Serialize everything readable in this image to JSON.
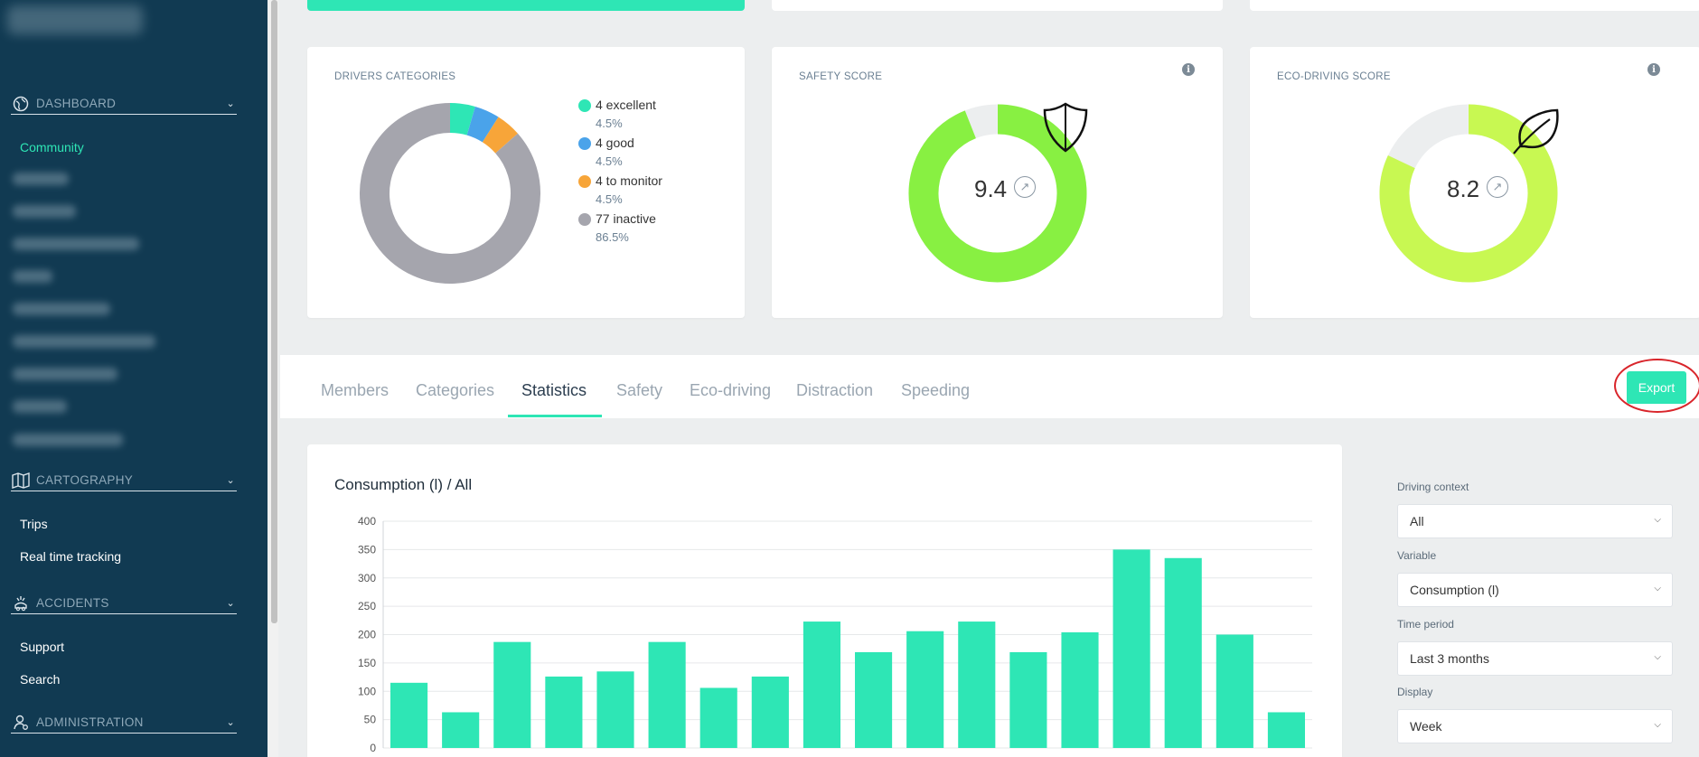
{
  "sidebar": {
    "sections": {
      "dashboard": "DASHBOARD",
      "cartography": "CARTOGRAPHY",
      "accidents": "ACCIDENTS",
      "administration": "ADMINISTRATION"
    },
    "dashboard_items": {
      "community": "Community"
    },
    "cartography_items": {
      "trips": "Trips",
      "realtime": "Real time tracking"
    },
    "accidents_items": {
      "support": "Support",
      "search": "Search"
    }
  },
  "cards": {
    "drivers": {
      "title": "DRIVERS CATEGORIES",
      "legend": [
        {
          "label": "4 excellent",
          "pct": "4.5%",
          "color": "#2ee6b5",
          "value": 4
        },
        {
          "label": "4 good",
          "pct": "4.5%",
          "color": "#4aa3ea",
          "value": 4
        },
        {
          "label": "4 to monitor",
          "pct": "4.5%",
          "color": "#f7a539",
          "value": 4
        },
        {
          "label": "77 inactive",
          "pct": "86.5%",
          "color": "#a5a5ad",
          "value": 77
        }
      ]
    },
    "safety": {
      "title": "SAFETY SCORE",
      "value": "9.4",
      "score": 9.4,
      "color": "#88f042",
      "icon": "shield-icon"
    },
    "eco": {
      "title": "ECO-DRIVING SCORE",
      "value": "8.2",
      "score": 8.2,
      "color": "#c8f852",
      "icon": "leaf-icon"
    }
  },
  "tabs": {
    "members": "Members",
    "categories": "Categories",
    "statistics": "Statistics",
    "safety": "Safety",
    "eco": "Eco-driving",
    "distraction": "Distraction",
    "speeding": "Speeding"
  },
  "export_label": "Export",
  "chart": {
    "title": "Consumption (l) / All"
  },
  "filters": {
    "driving_context": {
      "label": "Driving context",
      "value": "All"
    },
    "variable": {
      "label": "Variable",
      "value": "Consumption (l)"
    },
    "time_period": {
      "label": "Time period",
      "value": "Last 3 months"
    },
    "display": {
      "label": "Display",
      "value": "Week"
    }
  },
  "colors": {
    "accent": "#2ee6b5",
    "sidebar": "#113a52"
  },
  "chart_data": {
    "type": "bar",
    "title": "Consumption (l) / All",
    "xlabel": "",
    "ylabel": "",
    "ylim": [
      0,
      400
    ],
    "yticks": [
      0,
      50,
      100,
      150,
      200,
      250,
      300,
      350,
      400
    ],
    "values": [
      115,
      63,
      187,
      126,
      135,
      187,
      106,
      126,
      223,
      169,
      206,
      223,
      169,
      204,
      350,
      335,
      200,
      63
    ],
    "color": "#2ee6b5",
    "grid": true
  }
}
